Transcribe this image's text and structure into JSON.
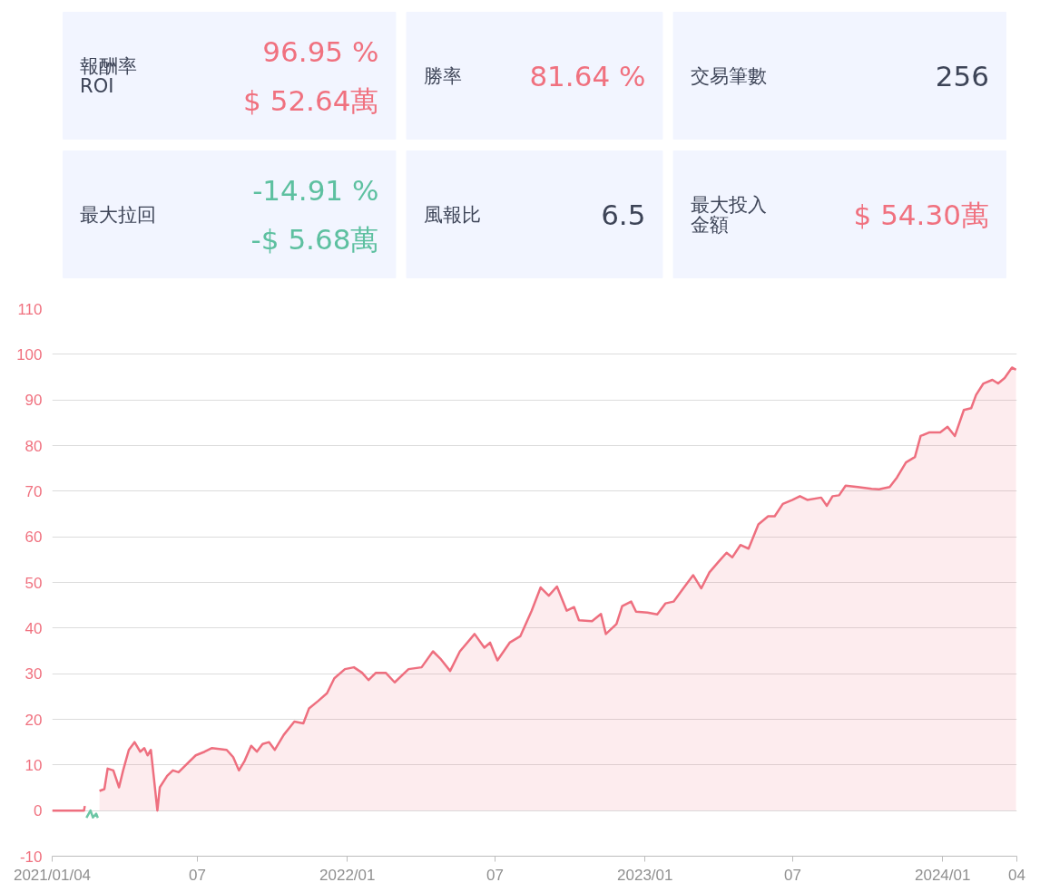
{
  "chart_data": [
    {
      "type": "other",
      "annotations": [
        "報酬率",
        "ROI",
        "96.95 %",
        "$ 52.64萬",
        "勝率",
        "81.64 %",
        "交易筆數",
        "256",
        "最大拉回",
        "-14.91 %",
        "-$ 5.68萬",
        "風報比",
        "6.5",
        "最大投入",
        "金額",
        "$ 54.30萬"
      ]
    },
    {
      "type": "area",
      "grid": "y",
      "xlim": [
        "2021-01-04",
        "2024-04-01"
      ],
      "ylim": [
        -10,
        110
      ],
      "xticks": [
        {
          "value": "2021-01-04",
          "label": "2021/01/04"
        },
        {
          "value": "2021-07-01",
          "label": "07"
        },
        {
          "value": "2022-01-01",
          "label": "2022/01"
        },
        {
          "value": "2022-07-01",
          "label": "07"
        },
        {
          "value": "2023-01-01",
          "label": "2023/01"
        },
        {
          "value": "2023-07-01",
          "label": "07"
        },
        {
          "value": "2024-01-01",
          "label": "2024/01"
        },
        {
          "value": "2024-04-01",
          "label": "04"
        }
      ],
      "yticks": [
        -10,
        0,
        10,
        20,
        30,
        40,
        50,
        60,
        70,
        80,
        90,
        100,
        110
      ],
      "series": [
        {
          "color": "#ee6f7f",
          "x": [
            "2021-01-04",
            "2021-02-12",
            "2021-02-13",
            "2021-02-20",
            "2021-03-03",
            "2021-03-09",
            "2021-03-13",
            "2021-03-20",
            "2021-03-27",
            "2021-04-01",
            "2021-04-08",
            "2021-04-15",
            "2021-04-22",
            "2021-04-27",
            "2021-05-01",
            "2021-05-05",
            "2021-05-09",
            "2021-05-13",
            "2021-05-16",
            "2021-05-25",
            "2021-06-01",
            "2021-06-08",
            "2021-06-17",
            "2021-06-29",
            "2021-07-10",
            "2021-07-19",
            "2021-08-06",
            "2021-08-14",
            "2021-08-21",
            "2021-08-28",
            "2021-09-05",
            "2021-09-12",
            "2021-09-19",
            "2021-09-27",
            "2021-10-04",
            "2021-10-15",
            "2021-10-28",
            "2021-11-08",
            "2021-11-15",
            "2021-11-26",
            "2021-12-07",
            "2021-12-16",
            "2021-12-29",
            "2022-01-09",
            "2022-01-19",
            "2022-01-27",
            "2022-02-05",
            "2022-02-17",
            "2022-02-28",
            "2022-03-17",
            "2022-04-02",
            "2022-04-16",
            "2022-04-25",
            "2022-05-07",
            "2022-05-19",
            "2022-06-06",
            "2022-06-18",
            "2022-06-25",
            "2022-07-04",
            "2022-07-19",
            "2022-08-01",
            "2022-08-15",
            "2022-08-26",
            "2022-09-05",
            "2022-09-15",
            "2022-09-27",
            "2022-10-06",
            "2022-10-12",
            "2022-10-28",
            "2022-11-08",
            "2022-11-14",
            "2022-11-27",
            "2022-12-04",
            "2022-12-15",
            "2022-12-21",
            "2023-01-04",
            "2023-01-16",
            "2023-01-26",
            "2023-02-05",
            "2023-02-17",
            "2023-03-01",
            "2023-03-11",
            "2023-03-21",
            "2023-04-01",
            "2023-04-11",
            "2023-04-18",
            "2023-04-28",
            "2023-05-08",
            "2023-05-20",
            "2023-06-01",
            "2023-06-09",
            "2023-06-19",
            "2023-07-01",
            "2023-07-10",
            "2023-07-19",
            "2023-08-05",
            "2023-08-12",
            "2023-08-19",
            "2023-08-27",
            "2023-09-04",
            "2023-09-19",
            "2023-10-06",
            "2023-10-15",
            "2023-10-28",
            "2023-11-06",
            "2023-11-17",
            "2023-11-28",
            "2023-12-05",
            "2023-12-16",
            "2023-12-29",
            "2024-01-07",
            "2024-01-16",
            "2024-01-27",
            "2024-02-05",
            "2024-02-11",
            "2024-02-20",
            "2024-03-02",
            "2024-03-09",
            "2024-03-17",
            "2024-03-26",
            "2024-03-31"
          ],
          "values": [
            0,
            0,
            1.0,
            null,
            4.3,
            4.7,
            9.2,
            8.8,
            5.1,
            8.8,
            13.3,
            15.0,
            12.9,
            13.7,
            12.1,
            13.3,
            6.7,
            0,
            5.1,
            7.6,
            8.8,
            8.4,
            10.0,
            12.1,
            12.9,
            13.7,
            13.3,
            11.7,
            8.8,
            10.9,
            14.2,
            12.9,
            14.6,
            15.0,
            13.3,
            16.6,
            19.5,
            19.1,
            22.4,
            24.0,
            25.7,
            29.0,
            31.0,
            31.4,
            30.2,
            28.6,
            30.2,
            30.2,
            28.1,
            31.0,
            31.4,
            34.9,
            33.3,
            30.6,
            34.9,
            38.7,
            35.7,
            36.8,
            32.9,
            36.8,
            38.2,
            43.8,
            48.9,
            47.1,
            49.1,
            43.8,
            44.6,
            41.7,
            41.5,
            43.1,
            38.7,
            40.9,
            44.8,
            45.8,
            43.6,
            43.4,
            43.0,
            45.4,
            45.8,
            48.7,
            51.6,
            48.7,
            52.2,
            54.5,
            56.5,
            55.5,
            58.2,
            57.4,
            62.7,
            64.5,
            64.5,
            67.2,
            68.1,
            68.9,
            68.1,
            68.6,
            66.8,
            68.9,
            69.1,
            71.2,
            70.9,
            70.5,
            70.4,
            70.9,
            73.0,
            76.3,
            77.5,
            82.1,
            82.9,
            82.9,
            84.1,
            82.1,
            87.8,
            88.2,
            91.1,
            93.6,
            94.4,
            93.6,
            94.8,
            97.1,
            96.6
          ]
        },
        {
          "type": "line",
          "color": "#6cc6a5",
          "x": [
            "2021-02-15",
            "2021-02-20",
            "2021-02-23",
            "2021-02-27",
            "2021-03-01"
          ],
          "values": [
            -1.6,
            0,
            -1.5,
            -0.7,
            -1.6
          ]
        }
      ]
    }
  ]
}
